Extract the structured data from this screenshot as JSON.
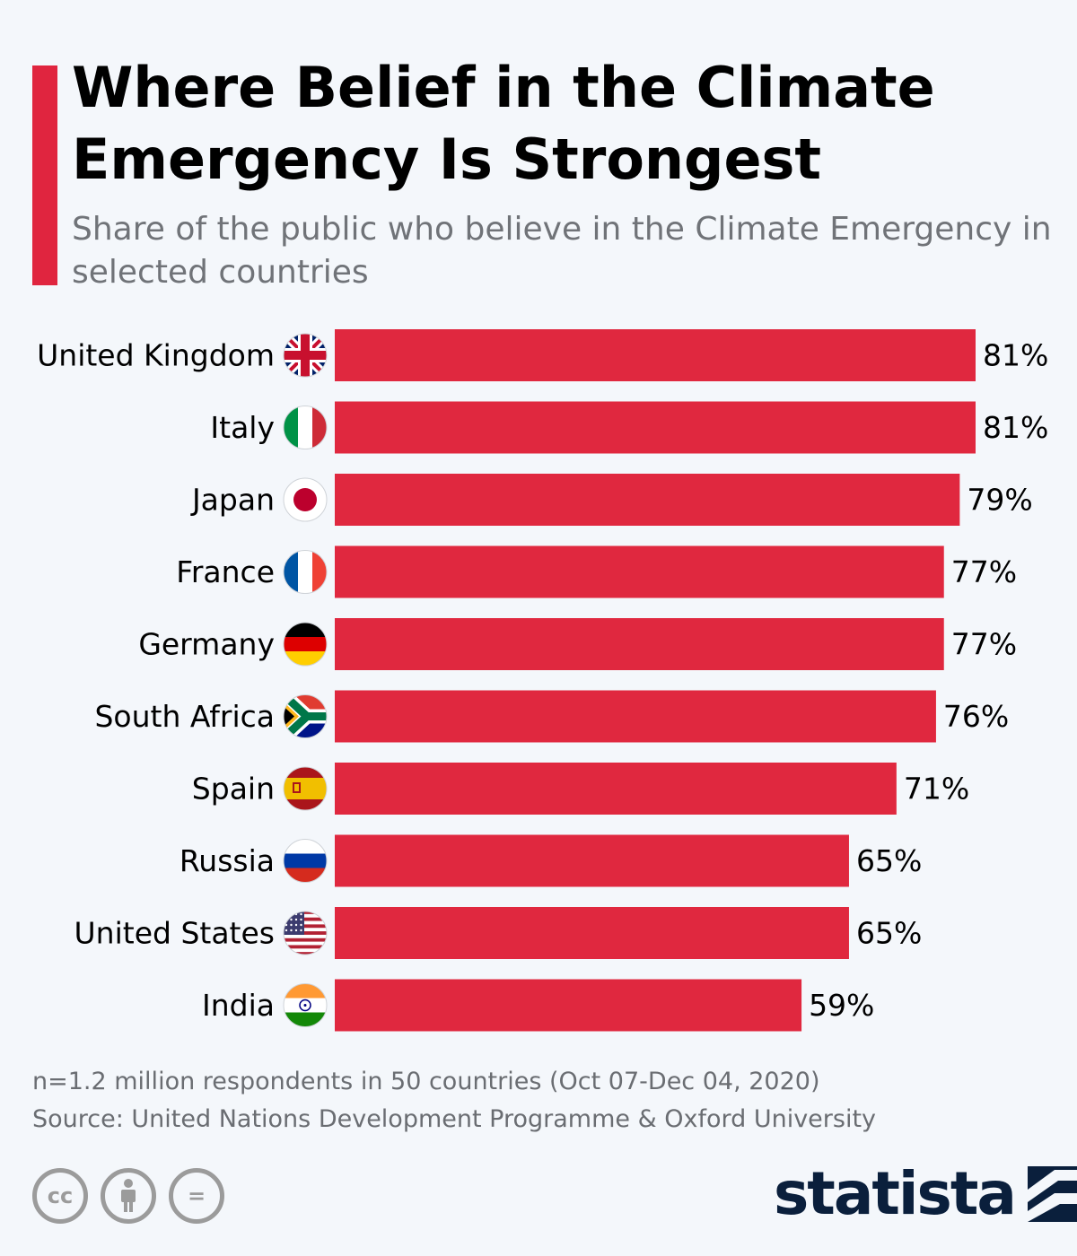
{
  "header": {
    "title": "Where Belief in the Climate Emergency Is Strongest",
    "subtitle": "Share of the public who believe in the Climate Emergency in selected countries"
  },
  "colors": {
    "accent": "#e0253f",
    "bar": "#e0283f",
    "text": "#000000",
    "muted": "#707378",
    "brand": "#0a1f3c"
  },
  "chart_data": {
    "type": "bar",
    "orientation": "horizontal",
    "categories": [
      "United Kingdom",
      "Italy",
      "Japan",
      "France",
      "Germany",
      "South Africa",
      "Spain",
      "Russia",
      "United States",
      "India"
    ],
    "values": [
      81,
      81,
      79,
      77,
      77,
      76,
      71,
      65,
      65,
      59
    ],
    "value_labels": [
      "81%",
      "81%",
      "79%",
      "77%",
      "77%",
      "76%",
      "71%",
      "65%",
      "65%",
      "59%"
    ],
    "flag_icons": [
      "uk-flag-icon",
      "italy-flag-icon",
      "japan-flag-icon",
      "france-flag-icon",
      "germany-flag-icon",
      "south-africa-flag-icon",
      "spain-flag-icon",
      "russia-flag-icon",
      "us-flag-icon",
      "india-flag-icon"
    ],
    "unit": "%",
    "xlim": [
      0,
      81
    ],
    "grid": false,
    "title": "Where Belief in the Climate Emergency Is Strongest"
  },
  "footer": {
    "note": "n=1.2 million respondents in 50 countries (Oct 07-Dec 04, 2020)",
    "source": "Source: United Nations Development Programme & Oxford University",
    "license_icons": [
      {
        "name": "cc-icon",
        "glyph": "cc"
      },
      {
        "name": "attribution-icon",
        "glyph": "ı"
      },
      {
        "name": "no-derivatives-icon",
        "glyph": "="
      }
    ],
    "brand": "statista"
  }
}
